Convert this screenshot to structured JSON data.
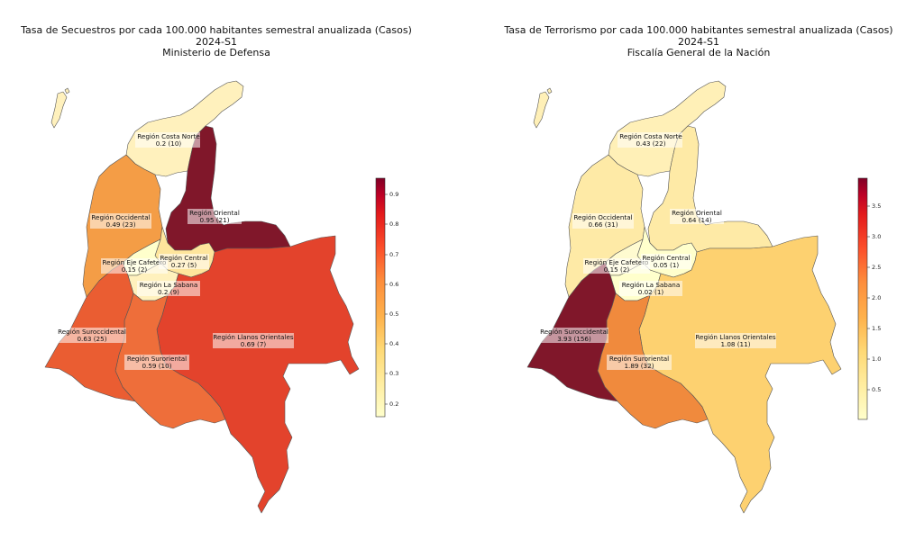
{
  "colors": {
    "stroke": "#555555",
    "label_bg": "#ffffff"
  },
  "maps": [
    {
      "title": "Tasa de Secuestros por cada 100.000 habitantes semestral anualizada (Casos)",
      "period": "2024-S1",
      "source": "Ministerio de Defensa",
      "colorbar": {
        "ticks": [
          "0.9",
          "0.8",
          "0.7",
          "0.6",
          "0.5",
          "0.4",
          "0.3",
          "0.2"
        ],
        "min": 0.15,
        "max": 0.95
      },
      "regions": [
        {
          "name": "Región Costa Norte",
          "value_text": "0.2 (10)",
          "rate": 0.2,
          "cases": 10,
          "fill": "#fff1bd"
        },
        {
          "name": "Región Occidental",
          "value_text": "0.49 (23)",
          "rate": 0.49,
          "cases": 23,
          "fill": "#f49d46"
        },
        {
          "name": "Región Oriental",
          "value_text": "0.95 (21)",
          "rate": 0.95,
          "cases": 21,
          "fill": "#80172a"
        },
        {
          "name": "Región Eje Cafetero",
          "value_text": "0.15 (2)",
          "rate": 0.15,
          "cases": 2,
          "fill": "#ffffcc"
        },
        {
          "name": "Región Central",
          "value_text": "0.27 (5)",
          "rate": 0.27,
          "cases": 5,
          "fill": "#fee59c"
        },
        {
          "name": "Región La Sabana",
          "value_text": "0.2 (9)",
          "rate": 0.2,
          "cases": 9,
          "fill": "#fff1bd"
        },
        {
          "name": "Región Suroccidental",
          "value_text": "0.63 (25)",
          "rate": 0.63,
          "cases": 25,
          "fill": "#ea5d32"
        },
        {
          "name": "Región Suroriental",
          "value_text": "0.59 (10)",
          "rate": 0.59,
          "cases": 10,
          "fill": "#ee6e3a"
        },
        {
          "name": "Región Llanos Orientales",
          "value_text": "0.69 (7)",
          "rate": 0.69,
          "cases": 7,
          "fill": "#e3432c"
        }
      ]
    },
    {
      "title": "Tasa de Terrorismo por cada 100.000 habitantes semestral anualizada (Casos)",
      "period": "2024-S1",
      "source": "Fiscalía General de la Nación",
      "colorbar": {
        "ticks": [
          "3.5",
          "3.0",
          "2.5",
          "2.0",
          "1.5",
          "1.0",
          "0.5"
        ],
        "min": 0.02,
        "max": 3.93
      },
      "regions": [
        {
          "name": "Región Costa Norte",
          "value_text": "0.43 (22)",
          "rate": 0.43,
          "cases": 22,
          "fill": "#fff0b7"
        },
        {
          "name": "Región Occidental",
          "value_text": "0.66 (31)",
          "rate": 0.66,
          "cases": 31,
          "fill": "#feeaa6"
        },
        {
          "name": "Región Oriental",
          "value_text": "0.64 (14)",
          "rate": 0.64,
          "cases": 14,
          "fill": "#feeaa6"
        },
        {
          "name": "Región Eje Cafetero",
          "value_text": "0.15 (2)",
          "rate": 0.15,
          "cases": 2,
          "fill": "#fffbd0"
        },
        {
          "name": "Región Central",
          "value_text": "0.05 (1)",
          "rate": 0.05,
          "cases": 1,
          "fill": "#ffffcc"
        },
        {
          "name": "Región La Sabana",
          "value_text": "0.02 (1)",
          "rate": 0.02,
          "cases": 1,
          "fill": "#ffffcc"
        },
        {
          "name": "Región Suroccidental",
          "value_text": "3.93 (156)",
          "rate": 3.93,
          "cases": 156,
          "fill": "#80172a"
        },
        {
          "name": "Región Suroriental",
          "value_text": "1.89 (32)",
          "rate": 1.89,
          "cases": 32,
          "fill": "#f08a3d"
        },
        {
          "name": "Región Llanos Orientales",
          "value_text": "1.08 (11)",
          "rate": 1.08,
          "cases": 11,
          "fill": "#fdd170"
        }
      ]
    }
  ]
}
